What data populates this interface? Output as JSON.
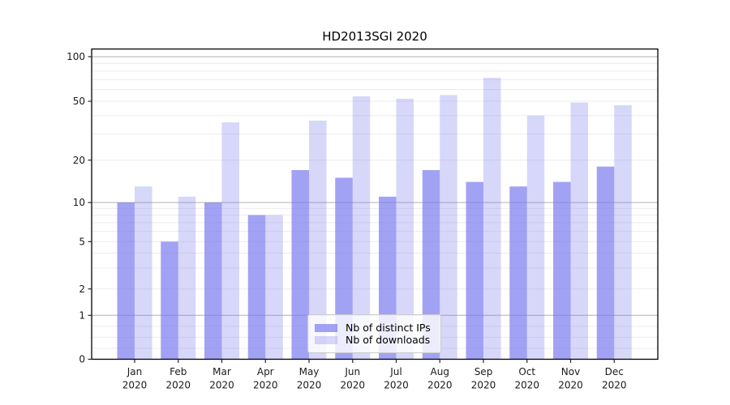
{
  "page": {
    "background": "#ffffff"
  },
  "chart_data": {
    "type": "bar",
    "title": "HD2013SGI 2020",
    "categories": [
      "Jan 2020",
      "Feb 2020",
      "Mar 2020",
      "Apr 2020",
      "May 2020",
      "Jun 2020",
      "Jul 2020",
      "Aug 2020",
      "Sep 2020",
      "Oct 2020",
      "Nov 2020",
      "Dec 2020"
    ],
    "series": [
      {
        "name": "Nb of distinct IPs",
        "values": [
          10,
          5,
          10,
          8,
          17,
          15,
          11,
          17,
          14,
          13,
          14,
          18
        ],
        "color": "rgba(122,122,240,0.7)"
      },
      {
        "name": "Nb of downloads",
        "values": [
          13,
          11,
          36,
          8,
          37,
          54,
          52,
          55,
          72,
          40,
          49,
          47
        ],
        "color": "rgba(122,122,240,0.3)"
      }
    ],
    "xlabel": "",
    "ylabel": "",
    "yscale": "symlog",
    "ylim": [
      0,
      112
    ],
    "yticks": [
      0,
      1,
      2,
      5,
      10,
      20,
      50,
      100
    ],
    "grid": {
      "show": true,
      "major_values": [
        1,
        10,
        100
      ],
      "minor_values": [
        0.25,
        0.5,
        0.75,
        2,
        3,
        4,
        5,
        6,
        7,
        8,
        9,
        20,
        30,
        40,
        50,
        60,
        70,
        80,
        90
      ],
      "major_color": "#b0b0b0",
      "minor_color": "#ececec"
    },
    "legend": {
      "position": "lower center"
    },
    "axis_color": "#000000",
    "tick_color": "#262626",
    "tick_label_color": "#1a1a1a"
  }
}
